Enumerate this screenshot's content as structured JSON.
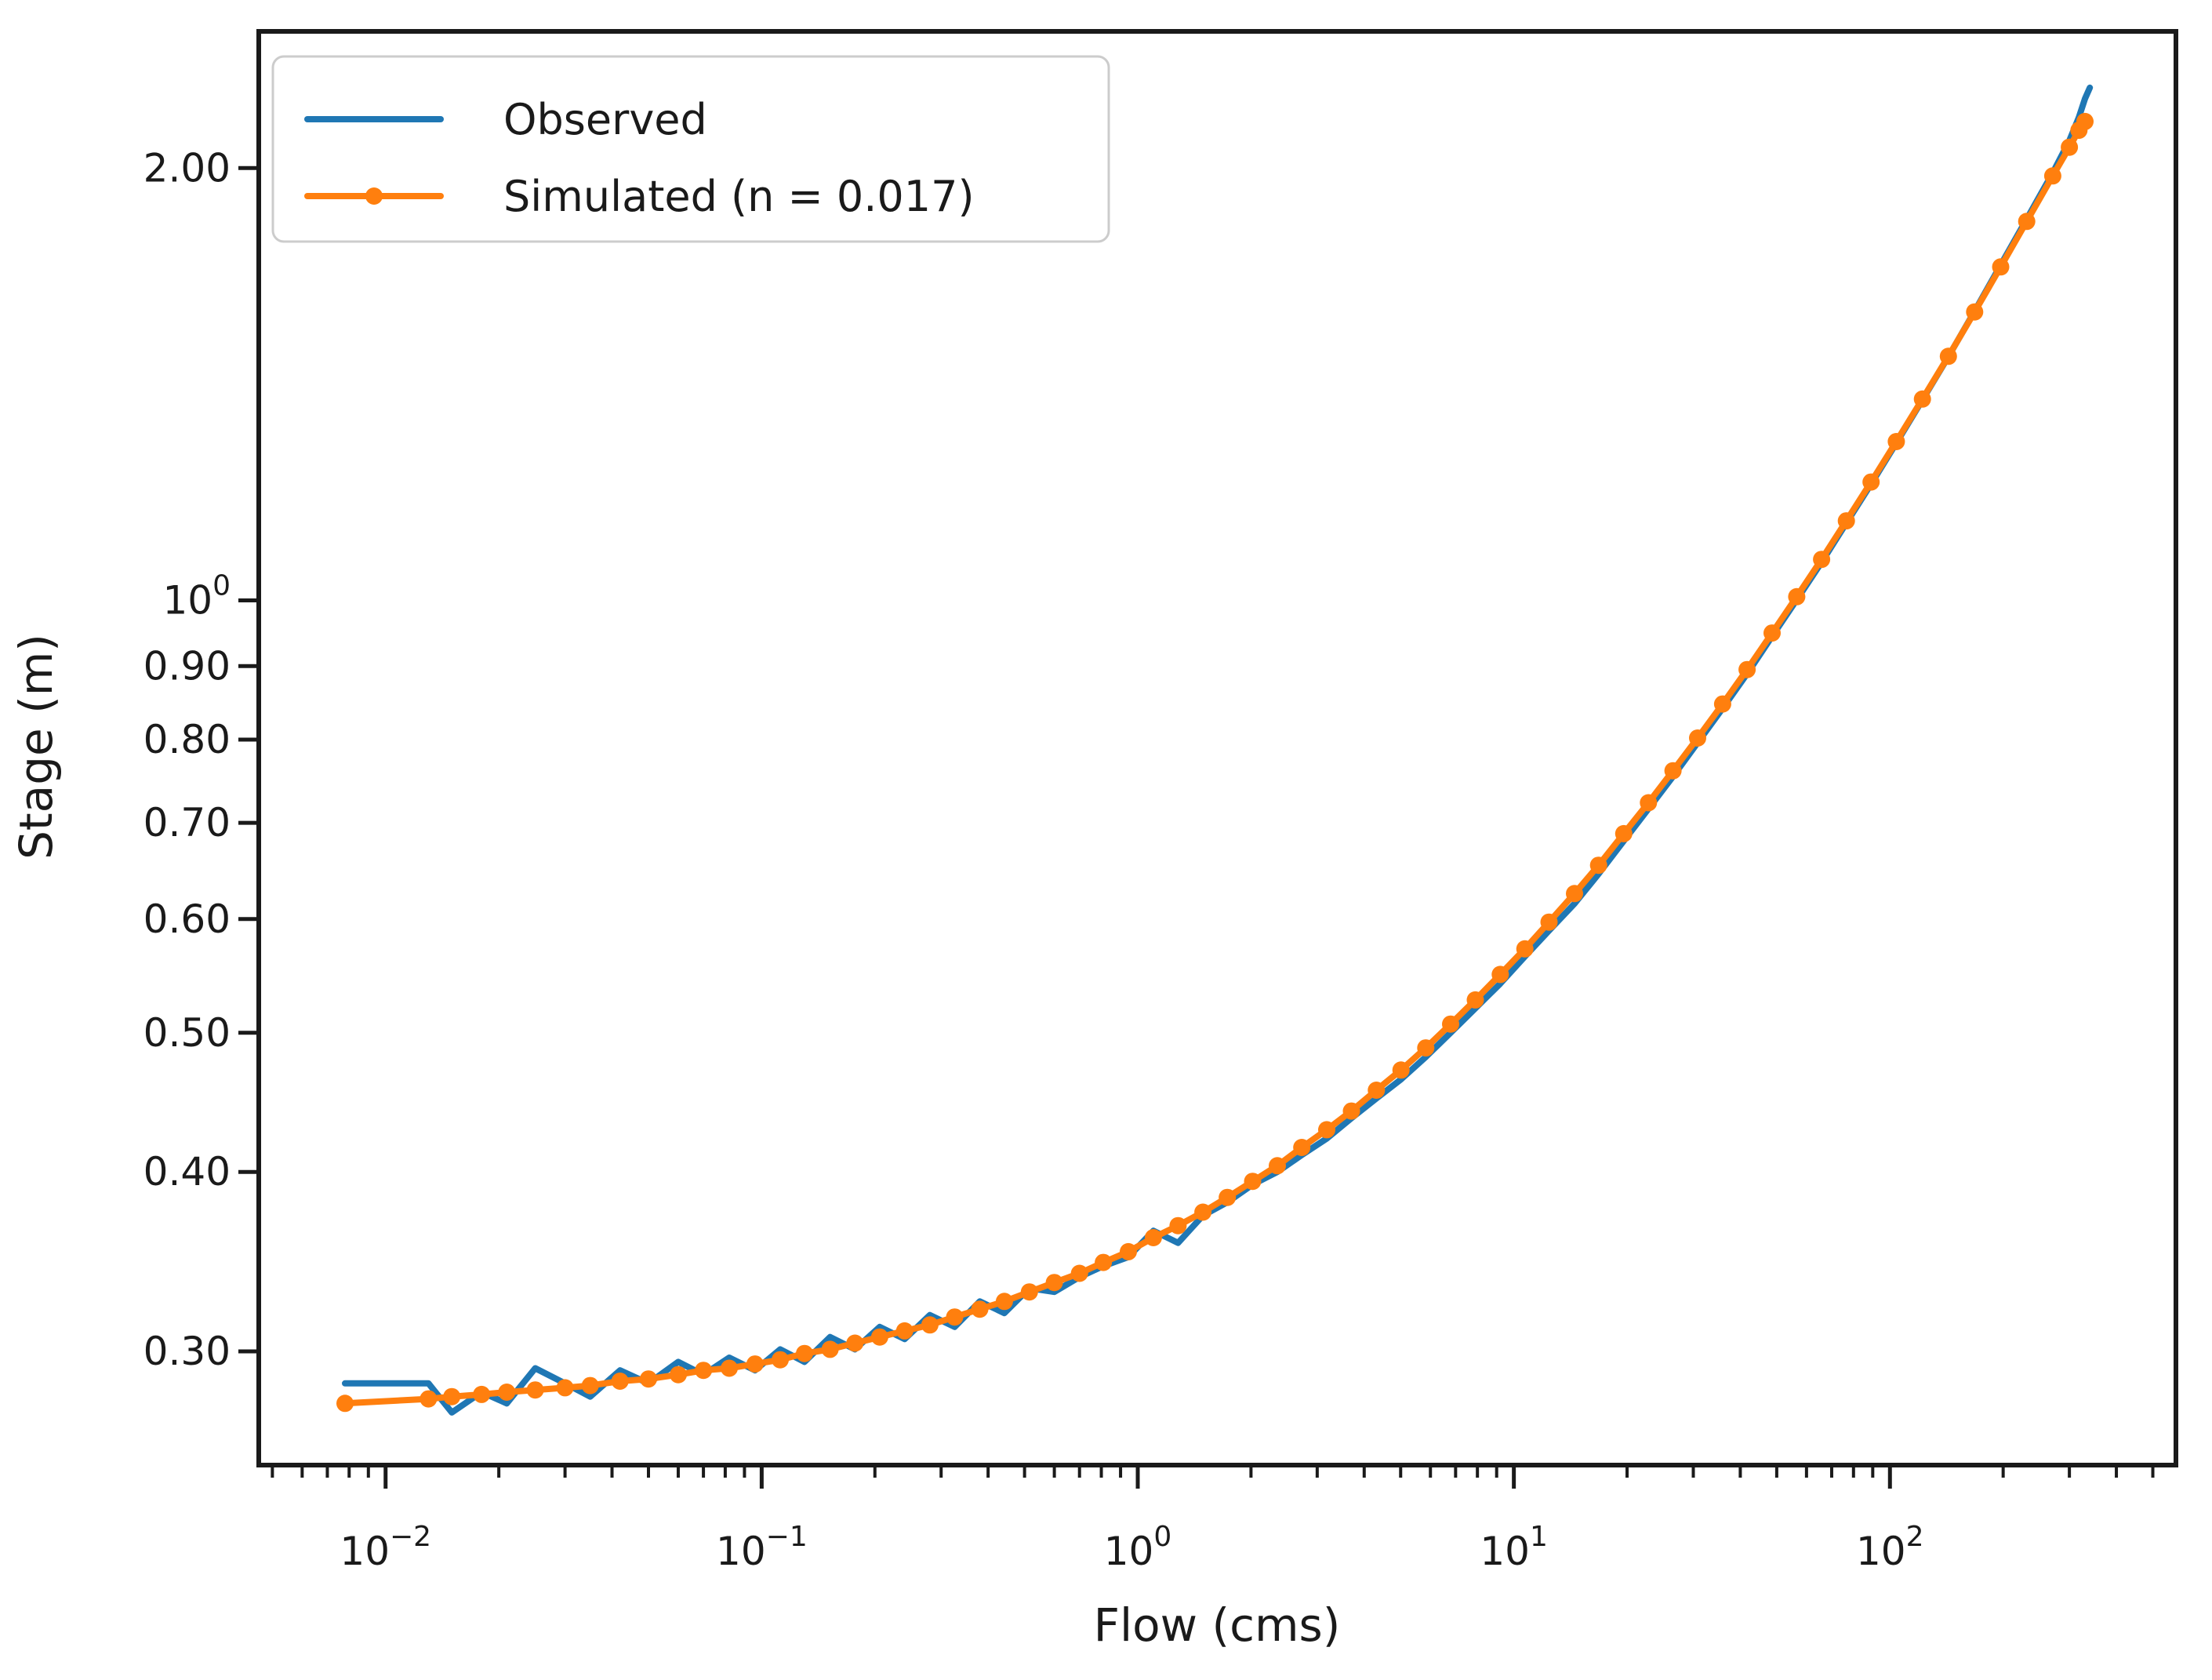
{
  "chart_data": {
    "type": "line",
    "title": "",
    "xlabel": "Flow (cms)",
    "ylabel": "Stage (m)",
    "x_scale": "log",
    "y_scale": "log",
    "x_domain": [
      0.0046,
      576
    ],
    "y_domain": [
      0.25,
      2.49
    ],
    "grid": false,
    "background_color": "#ffffff",
    "spine_color": "#1a1a1a",
    "tick_color": "#1a1a1a",
    "x_major_ticks": [
      {
        "value": 0.01,
        "base": "10",
        "exp": "−2"
      },
      {
        "value": 0.1,
        "base": "10",
        "exp": "−1"
      },
      {
        "value": 1,
        "base": "10",
        "exp": "0"
      },
      {
        "value": 10,
        "base": "10",
        "exp": "1"
      },
      {
        "value": 100,
        "base": "10",
        "exp": "2"
      }
    ],
    "x_minor_ticks": [
      0.005,
      0.006,
      0.007,
      0.008,
      0.009,
      0.02,
      0.03,
      0.04,
      0.05,
      0.06,
      0.07,
      0.08,
      0.09,
      0.2,
      0.3,
      0.4,
      0.5,
      0.6,
      0.7,
      0.8,
      0.9,
      2,
      3,
      4,
      5,
      6,
      7,
      8,
      9,
      20,
      30,
      40,
      50,
      60,
      70,
      80,
      90,
      200,
      300,
      400,
      500
    ],
    "y_ticks": [
      {
        "value": 2.0,
        "label": "2.00"
      },
      {
        "value": 1.0,
        "label": "10",
        "exp": "0"
      },
      {
        "value": 0.9,
        "label": "0.90"
      },
      {
        "value": 0.8,
        "label": "0.80"
      },
      {
        "value": 0.7,
        "label": "0.70"
      },
      {
        "value": 0.6,
        "label": "0.60"
      },
      {
        "value": 0.5,
        "label": "0.50"
      },
      {
        "value": 0.4,
        "label": "0.40"
      },
      {
        "value": 0.3,
        "label": "0.30"
      }
    ],
    "legend": {
      "position": "upper left",
      "border_color": "#cccccc",
      "fill_color": "#ffffff"
    },
    "series": [
      {
        "name": "Observed",
        "color": "#1f77b4",
        "marker": "none",
        "line_width": 8,
        "points": [
          [
            0.0078,
            0.285
          ],
          [
            0.013,
            0.285
          ],
          [
            0.015,
            0.272
          ],
          [
            0.018,
            0.281
          ],
          [
            0.021,
            0.276
          ],
          [
            0.025,
            0.292
          ],
          [
            0.03,
            0.285
          ],
          [
            0.035,
            0.279
          ],
          [
            0.042,
            0.291
          ],
          [
            0.05,
            0.285
          ],
          [
            0.06,
            0.295
          ],
          [
            0.07,
            0.289
          ],
          [
            0.082,
            0.297
          ],
          [
            0.096,
            0.291
          ],
          [
            0.112,
            0.301
          ],
          [
            0.13,
            0.295
          ],
          [
            0.152,
            0.307
          ],
          [
            0.177,
            0.301
          ],
          [
            0.206,
            0.312
          ],
          [
            0.24,
            0.306
          ],
          [
            0.28,
            0.318
          ],
          [
            0.326,
            0.312
          ],
          [
            0.38,
            0.325
          ],
          [
            0.442,
            0.319
          ],
          [
            0.515,
            0.332
          ],
          [
            0.6,
            0.33
          ],
          [
            0.7,
            0.338
          ],
          [
            0.81,
            0.344
          ],
          [
            0.944,
            0.349
          ],
          [
            1.1,
            0.364
          ],
          [
            1.28,
            0.357
          ],
          [
            1.49,
            0.373
          ],
          [
            1.73,
            0.381
          ],
          [
            2.02,
            0.392
          ],
          [
            2.35,
            0.4
          ],
          [
            2.73,
            0.411
          ],
          [
            3.18,
            0.422
          ],
          [
            3.7,
            0.436
          ],
          [
            4.31,
            0.45
          ],
          [
            5.01,
            0.464
          ],
          [
            5.83,
            0.481
          ],
          [
            6.79,
            0.5
          ],
          [
            7.9,
            0.52
          ],
          [
            9.2,
            0.541
          ],
          [
            10.7,
            0.565
          ],
          [
            12.4,
            0.589
          ],
          [
            14.5,
            0.615
          ],
          [
            16.8,
            0.645
          ],
          [
            19.6,
            0.68
          ],
          [
            22.8,
            0.716
          ],
          [
            26.5,
            0.754
          ],
          [
            30.8,
            0.796
          ],
          [
            35.9,
            0.841
          ],
          [
            41.7,
            0.889
          ],
          [
            48.6,
            0.944
          ],
          [
            56.5,
            1.001
          ],
          [
            65.8,
            1.063
          ],
          [
            76.6,
            1.132
          ],
          [
            89.1,
            1.205
          ],
          [
            104,
            1.287
          ],
          [
            122,
            1.379
          ],
          [
            143,
            1.478
          ],
          [
            168,
            1.59
          ],
          [
            197,
            1.712
          ],
          [
            231,
            1.843
          ],
          [
            271,
            1.985
          ],
          [
            300,
            2.09
          ],
          [
            318,
            2.17
          ],
          [
            330,
            2.235
          ],
          [
            340,
            2.275
          ]
        ]
      },
      {
        "name": "Simulated (n = 0.017)",
        "color": "#ff7f0e",
        "marker": "circle",
        "marker_radius": 11,
        "line_width": 8,
        "points": [
          [
            0.0078,
            0.276
          ],
          [
            0.013,
            0.278
          ],
          [
            0.015,
            0.279
          ],
          [
            0.018,
            0.28
          ],
          [
            0.021,
            0.281
          ],
          [
            0.025,
            0.282
          ],
          [
            0.03,
            0.283
          ],
          [
            0.035,
            0.284
          ],
          [
            0.042,
            0.286
          ],
          [
            0.05,
            0.287
          ],
          [
            0.06,
            0.289
          ],
          [
            0.07,
            0.291
          ],
          [
            0.082,
            0.292
          ],
          [
            0.096,
            0.294
          ],
          [
            0.112,
            0.296
          ],
          [
            0.13,
            0.299
          ],
          [
            0.152,
            0.301
          ],
          [
            0.177,
            0.304
          ],
          [
            0.206,
            0.307
          ],
          [
            0.24,
            0.31
          ],
          [
            0.28,
            0.313
          ],
          [
            0.326,
            0.317
          ],
          [
            0.38,
            0.321
          ],
          [
            0.442,
            0.325
          ],
          [
            0.515,
            0.33
          ],
          [
            0.6,
            0.335
          ],
          [
            0.7,
            0.34
          ],
          [
            0.81,
            0.346
          ],
          [
            0.944,
            0.352
          ],
          [
            1.1,
            0.36
          ],
          [
            1.28,
            0.367
          ],
          [
            1.49,
            0.375
          ],
          [
            1.73,
            0.384
          ],
          [
            2.02,
            0.394
          ],
          [
            2.35,
            0.404
          ],
          [
            2.73,
            0.416
          ],
          [
            3.18,
            0.428
          ],
          [
            3.7,
            0.441
          ],
          [
            4.31,
            0.456
          ],
          [
            5.01,
            0.471
          ],
          [
            5.83,
            0.488
          ],
          [
            6.79,
            0.507
          ],
          [
            7.9,
            0.527
          ],
          [
            9.2,
            0.549
          ],
          [
            10.7,
            0.572
          ],
          [
            12.4,
            0.597
          ],
          [
            14.5,
            0.625
          ],
          [
            16.8,
            0.654
          ],
          [
            19.6,
            0.688
          ],
          [
            22.8,
            0.723
          ],
          [
            26.5,
            0.761
          ],
          [
            30.8,
            0.802
          ],
          [
            35.9,
            0.847
          ],
          [
            41.7,
            0.895
          ],
          [
            48.6,
            0.949
          ],
          [
            56.5,
            1.006
          ],
          [
            65.8,
            1.068
          ],
          [
            76.6,
            1.136
          ],
          [
            89.1,
            1.209
          ],
          [
            104,
            1.29
          ],
          [
            122,
            1.381
          ],
          [
            143,
            1.479
          ],
          [
            168,
            1.588
          ],
          [
            197,
            1.707
          ],
          [
            231,
            1.836
          ],
          [
            271,
            1.975
          ],
          [
            300,
            2.068
          ],
          [
            318,
            2.125
          ],
          [
            330,
            2.155
          ]
        ]
      }
    ]
  }
}
